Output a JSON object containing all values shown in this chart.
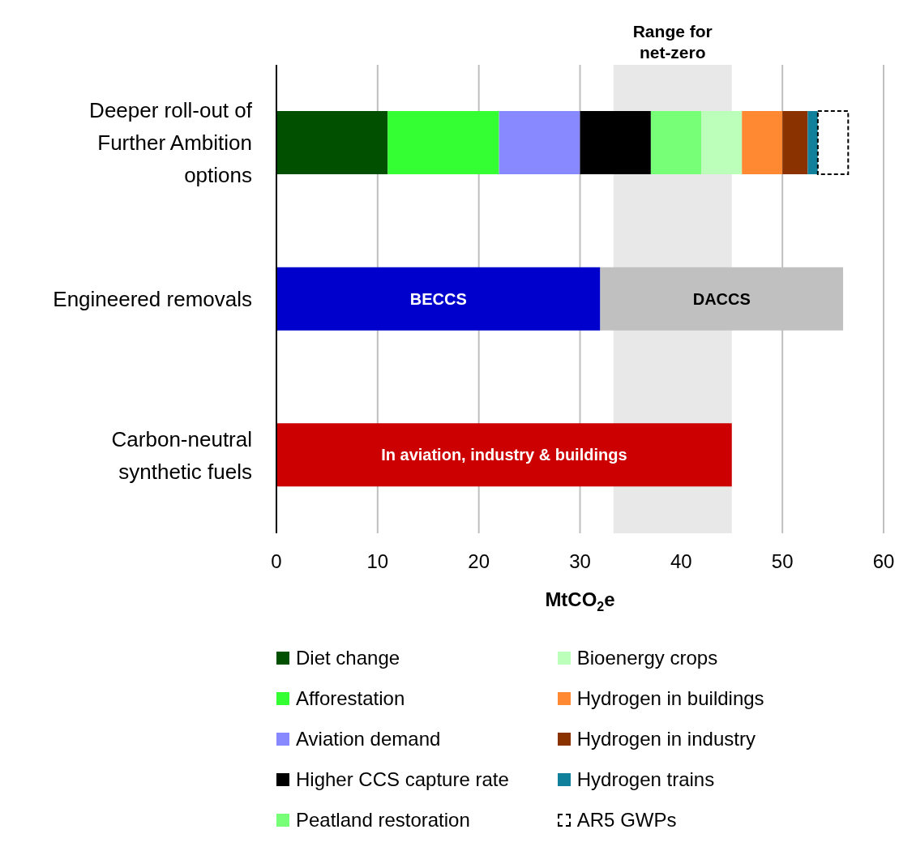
{
  "chart_data": {
    "type": "bar",
    "orientation": "horizontal",
    "stacked": true,
    "xlabel": "MtCO$_{2}$e",
    "categories": [
      "Deeper roll-out of Further Ambition options",
      "Engineered removals",
      "Carbon-neutral synthetic fuels"
    ],
    "series": [
      {
        "name": "Diet change",
        "color": "#005000",
        "values": [
          11,
          null,
          null
        ]
      },
      {
        "name": "Afforestation",
        "color": "#33ff33",
        "values": [
          11,
          null,
          null
        ]
      },
      {
        "name": "Aviation demand",
        "color": "#8888ff",
        "values": [
          8,
          null,
          null
        ]
      },
      {
        "name": "Higher CCS capture rate",
        "color": "#000000",
        "values": [
          7,
          null,
          null
        ]
      },
      {
        "name": "Peatland restoration",
        "color": "#77ff77",
        "values": [
          5,
          null,
          null
        ]
      },
      {
        "name": "Bioenergy crops",
        "color": "#bbffbb",
        "values": [
          4,
          null,
          null
        ]
      },
      {
        "name": "Hydrogen in buildings",
        "color": "#ff8833",
        "values": [
          4,
          null,
          null
        ]
      },
      {
        "name": "Hydrogen in industry",
        "color": "#8b3300",
        "values": [
          2.5,
          null,
          null
        ]
      },
      {
        "name": "Hydrogen trains",
        "color": "#11809a",
        "values": [
          1,
          null,
          null
        ]
      },
      {
        "name": "AR5 GWPs",
        "color": "#ffffff",
        "line_style": "dashed",
        "values": [
          3,
          null,
          null
        ]
      },
      {
        "name": "BECCS",
        "color": "#0000cc",
        "values": [
          null,
          32,
          null
        ]
      },
      {
        "name": "DACCS",
        "color": "#c0c0c0",
        "values": [
          null,
          24,
          null
        ]
      },
      {
        "name": "In aviation, industry & buildings",
        "color": "#cc0000",
        "values": [
          null,
          null,
          45
        ]
      }
    ],
    "xlim": [
      0,
      60
    ],
    "xticks": [
      0,
      10,
      20,
      30,
      40,
      50,
      60
    ],
    "grid": "x",
    "legend": "bottom",
    "bands": [
      {
        "axis": "x",
        "from": 33.3,
        "to": 45,
        "label": "Range for net-zero",
        "color": "#e8e8e8"
      }
    ]
  }
}
